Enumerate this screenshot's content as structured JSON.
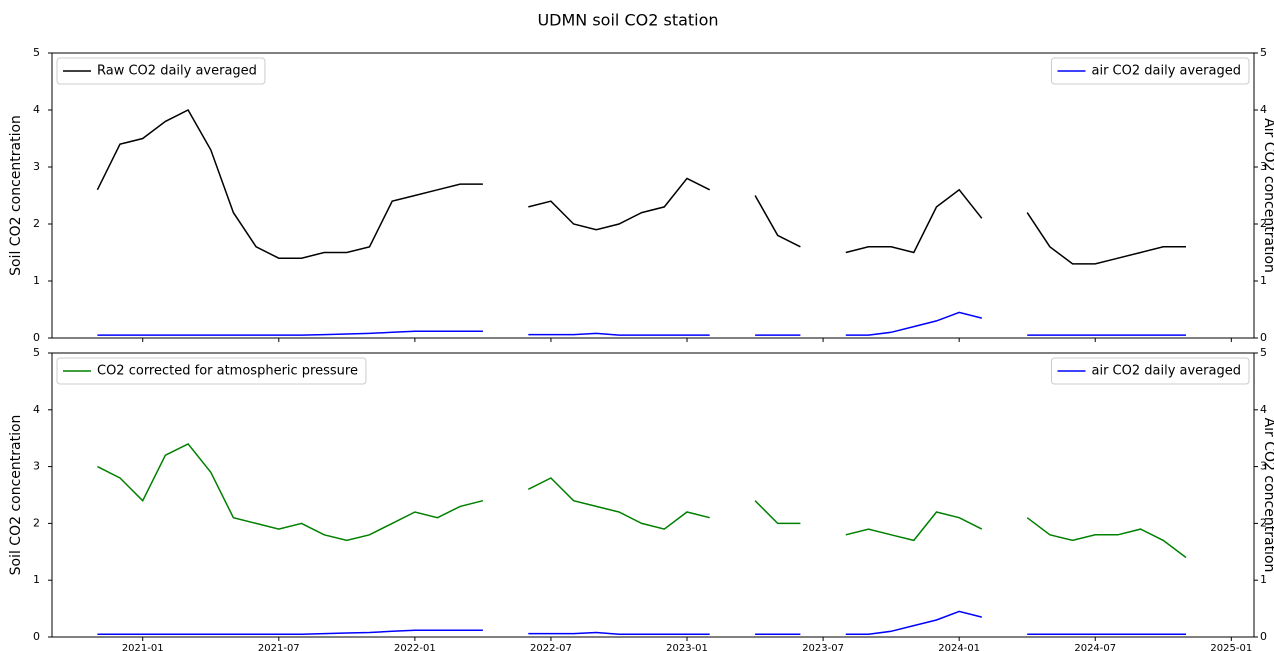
{
  "title": "UDMN soil CO2 station",
  "chart_data": [
    {
      "type": "line",
      "ylabel": "Soil CO2 concentration",
      "y2label": "Air CO2 concentration",
      "x": [
        "2020-11",
        "2020-12",
        "2021-01",
        "2021-02",
        "2021-03",
        "2021-04",
        "2021-05",
        "2021-06",
        "2021-07",
        "2021-08",
        "2021-09",
        "2021-10",
        "2021-11",
        "2021-12",
        "2022-01",
        "2022-02",
        "2022-03",
        "2022-04",
        "2022-05",
        "2022-06",
        "2022-07",
        "2022-08",
        "2022-09",
        "2022-10",
        "2022-11",
        "2022-12",
        "2023-01",
        "2023-02",
        "2023-03",
        "2023-04",
        "2023-05",
        "2023-06",
        "2023-07",
        "2023-08",
        "2023-09",
        "2023-10",
        "2023-11",
        "2023-12",
        "2024-01",
        "2024-02",
        "2024-03",
        "2024-04",
        "2024-05",
        "2024-06",
        "2024-07",
        "2024-08",
        "2024-09",
        "2024-10",
        "2024-11"
      ],
      "xlim": [
        "2020-09",
        "2025-02"
      ],
      "xticks": [
        "2021-01",
        "2021-07",
        "2022-01",
        "2022-07",
        "2023-01",
        "2023-07",
        "2024-01",
        "2024-07",
        "2025-01"
      ],
      "show_xtick_labels": false,
      "ylim": [
        0,
        5
      ],
      "yticks": [
        0,
        1,
        2,
        3,
        4,
        5
      ],
      "y2lim": [
        0,
        5
      ],
      "y2ticks": [
        0,
        1,
        2,
        3,
        4,
        5
      ],
      "legend": "upper left",
      "legend2": "upper right",
      "series": [
        {
          "name": "Raw CO2 daily averaged",
          "color": "#000000",
          "values": [
            2.6,
            3.4,
            3.5,
            3.8,
            4.0,
            3.3,
            2.2,
            1.6,
            1.4,
            1.4,
            1.5,
            1.5,
            1.6,
            2.4,
            2.5,
            2.6,
            2.7,
            2.7,
            null,
            2.3,
            2.4,
            2.0,
            1.9,
            2.0,
            2.2,
            2.3,
            2.8,
            2.6,
            null,
            2.5,
            1.8,
            1.6,
            null,
            1.5,
            1.6,
            1.6,
            1.5,
            2.3,
            2.6,
            2.1,
            null,
            2.2,
            1.6,
            1.3,
            1.3,
            1.4,
            1.5,
            1.6,
            1.6
          ]
        },
        {
          "name": "air CO2 daily averaged",
          "color": "#0000ff",
          "axis": "y2",
          "values": [
            0.05,
            0.05,
            0.05,
            0.05,
            0.05,
            0.05,
            0.05,
            0.05,
            0.05,
            0.05,
            0.06,
            0.07,
            0.08,
            0.1,
            0.12,
            0.12,
            0.12,
            0.12,
            null,
            0.06,
            0.06,
            0.06,
            0.08,
            0.05,
            0.05,
            0.05,
            0.05,
            0.05,
            null,
            0.05,
            0.05,
            0.05,
            null,
            0.05,
            0.05,
            0.1,
            0.2,
            0.3,
            0.45,
            0.35,
            null,
            0.05,
            0.05,
            0.05,
            0.05,
            0.05,
            0.05,
            0.05,
            0.05
          ]
        }
      ]
    },
    {
      "type": "line",
      "ylabel": "Soil CO2 concentration",
      "y2label": "Air CO2 concentration",
      "x": [
        "2020-11",
        "2020-12",
        "2021-01",
        "2021-02",
        "2021-03",
        "2021-04",
        "2021-05",
        "2021-06",
        "2021-07",
        "2021-08",
        "2021-09",
        "2021-10",
        "2021-11",
        "2021-12",
        "2022-01",
        "2022-02",
        "2022-03",
        "2022-04",
        "2022-05",
        "2022-06",
        "2022-07",
        "2022-08",
        "2022-09",
        "2022-10",
        "2022-11",
        "2022-12",
        "2023-01",
        "2023-02",
        "2023-03",
        "2023-04",
        "2023-05",
        "2023-06",
        "2023-07",
        "2023-08",
        "2023-09",
        "2023-10",
        "2023-11",
        "2023-12",
        "2024-01",
        "2024-02",
        "2024-03",
        "2024-04",
        "2024-05",
        "2024-06",
        "2024-07",
        "2024-08",
        "2024-09",
        "2024-10",
        "2024-11"
      ],
      "xlim": [
        "2020-09",
        "2025-02"
      ],
      "xticks": [
        "2021-01",
        "2021-07",
        "2022-01",
        "2022-07",
        "2023-01",
        "2023-07",
        "2024-01",
        "2024-07",
        "2025-01"
      ],
      "show_xtick_labels": true,
      "ylim": [
        0,
        5
      ],
      "yticks": [
        0,
        1,
        2,
        3,
        4,
        5
      ],
      "y2lim": [
        0,
        5
      ],
      "y2ticks": [
        0,
        1,
        2,
        3,
        4,
        5
      ],
      "legend": "upper left",
      "legend2": "upper right",
      "series": [
        {
          "name": "CO2 corrected for atmospheric pressure",
          "color": "#008000",
          "values": [
            3.0,
            2.8,
            2.4,
            3.2,
            3.4,
            2.9,
            2.1,
            2.0,
            1.9,
            2.0,
            1.8,
            1.7,
            1.8,
            2.0,
            2.2,
            2.1,
            2.3,
            2.4,
            null,
            2.6,
            2.8,
            2.4,
            2.3,
            2.2,
            2.0,
            1.9,
            2.2,
            2.1,
            null,
            2.4,
            2.0,
            2.0,
            null,
            1.8,
            1.9,
            1.8,
            1.7,
            2.2,
            2.1,
            1.9,
            null,
            2.1,
            1.8,
            1.7,
            1.8,
            1.8,
            1.9,
            1.7,
            1.4
          ]
        },
        {
          "name": "air CO2 daily averaged",
          "color": "#0000ff",
          "axis": "y2",
          "values": [
            0.05,
            0.05,
            0.05,
            0.05,
            0.05,
            0.05,
            0.05,
            0.05,
            0.05,
            0.05,
            0.06,
            0.07,
            0.08,
            0.1,
            0.12,
            0.12,
            0.12,
            0.12,
            null,
            0.06,
            0.06,
            0.06,
            0.08,
            0.05,
            0.05,
            0.05,
            0.05,
            0.05,
            null,
            0.05,
            0.05,
            0.05,
            null,
            0.05,
            0.05,
            0.1,
            0.2,
            0.3,
            0.45,
            0.35,
            null,
            0.05,
            0.05,
            0.05,
            0.05,
            0.05,
            0.05,
            0.05,
            0.05
          ]
        }
      ]
    }
  ]
}
